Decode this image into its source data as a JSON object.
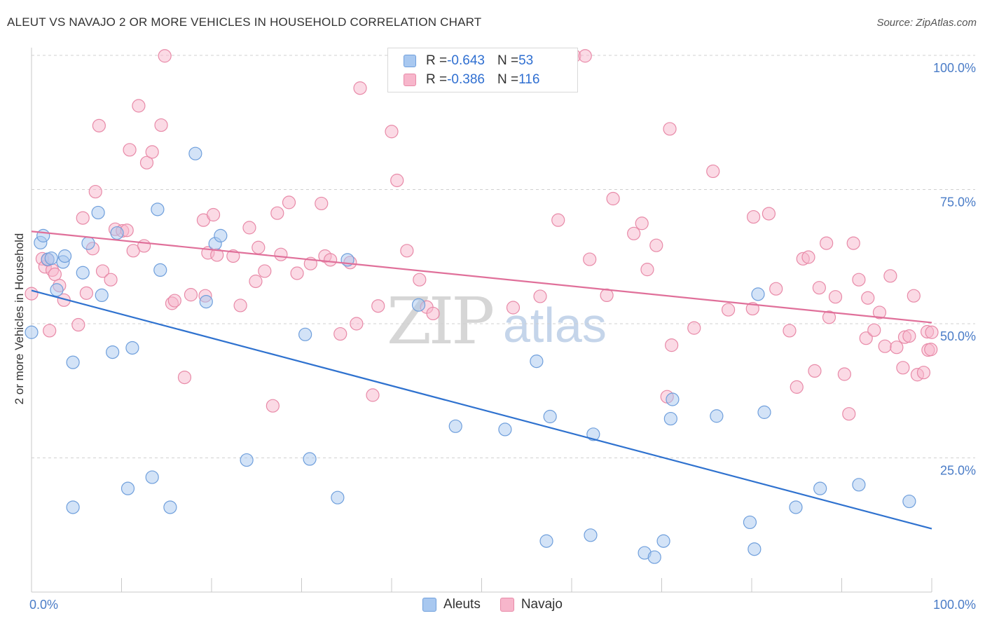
{
  "title": "ALEUT VS NAVAJO 2 OR MORE VEHICLES IN HOUSEHOLD CORRELATION CHART",
  "source": "Source: ZipAtlas.com",
  "watermark": {
    "zip": "ZIP",
    "atlas": "atlas"
  },
  "legend": {
    "rows": [
      {
        "r_label": "R = ",
        "r_value": "-0.643",
        "n_label": "N = ",
        "n_value": "53",
        "color": "#a8c8f0"
      },
      {
        "r_label": "R = ",
        "r_value": "-0.386",
        "n_label": "N = ",
        "n_value": "116",
        "color": "#f7b6cb"
      }
    ]
  },
  "bottom_legend": {
    "aleuts": "Aleuts",
    "navajo": "Navajo"
  },
  "colors": {
    "aleut_fill": "#a8c8f0",
    "aleut_stroke": "#6f9fdc",
    "aleut_line": "#2f72cf",
    "navajo_fill": "#f7b6cb",
    "navajo_stroke": "#e88aa8",
    "navajo_line": "#e0709a",
    "grid": "#d0d0d0",
    "tick_text": "#4a7cc7"
  },
  "chart_data": {
    "type": "scatter",
    "xlabel": "",
    "ylabel": "2 or more Vehicles in Household",
    "xlim": [
      0,
      100
    ],
    "ylim": [
      0,
      100
    ],
    "x_tick_labels": [
      "0.0%",
      "100.0%"
    ],
    "y_ticks": [
      25,
      50,
      75,
      100
    ],
    "y_tick_labels": [
      "25.0%",
      "50.0%",
      "75.0%",
      "100.0%"
    ],
    "grid": "horizontal-dashed",
    "series": [
      {
        "name": "Aleuts",
        "trend": {
          "x": [
            0,
            100
          ],
          "y": [
            56.2,
            11.8
          ]
        },
        "points": [
          [
            0.0,
            48.4
          ],
          [
            1.0,
            65.1
          ],
          [
            1.3,
            66.4
          ],
          [
            1.8,
            62.0
          ],
          [
            2.2,
            62.2
          ],
          [
            2.8,
            56.3
          ],
          [
            3.5,
            61.5
          ],
          [
            3.7,
            62.6
          ],
          [
            4.6,
            42.8
          ],
          [
            4.6,
            15.8
          ],
          [
            5.7,
            59.5
          ],
          [
            6.3,
            65.0
          ],
          [
            7.4,
            70.7
          ],
          [
            7.8,
            55.3
          ],
          [
            9.0,
            44.7
          ],
          [
            9.5,
            66.9
          ],
          [
            10.7,
            19.3
          ],
          [
            11.2,
            45.5
          ],
          [
            13.4,
            21.4
          ],
          [
            14.0,
            71.3
          ],
          [
            14.3,
            60.0
          ],
          [
            15.4,
            15.8
          ],
          [
            18.2,
            81.7
          ],
          [
            19.4,
            54.1
          ],
          [
            20.4,
            64.9
          ],
          [
            21.0,
            66.4
          ],
          [
            23.9,
            24.6
          ],
          [
            30.4,
            48.0
          ],
          [
            30.9,
            24.8
          ],
          [
            34.0,
            17.6
          ],
          [
            35.1,
            61.9
          ],
          [
            43.0,
            53.5
          ],
          [
            47.1,
            30.9
          ],
          [
            52.6,
            30.3
          ],
          [
            56.1,
            43.0
          ],
          [
            57.2,
            9.5
          ],
          [
            57.6,
            32.7
          ],
          [
            62.1,
            10.6
          ],
          [
            62.4,
            29.4
          ],
          [
            68.1,
            7.3
          ],
          [
            69.2,
            6.5
          ],
          [
            70.2,
            9.5
          ],
          [
            71.0,
            32.3
          ],
          [
            71.2,
            35.9
          ],
          [
            76.1,
            32.8
          ],
          [
            79.8,
            13.0
          ],
          [
            80.3,
            8.0
          ],
          [
            80.7,
            55.5
          ],
          [
            81.4,
            33.5
          ],
          [
            84.9,
            15.8
          ],
          [
            87.6,
            19.3
          ],
          [
            91.9,
            20.0
          ],
          [
            97.5,
            16.9
          ]
        ]
      },
      {
        "name": "Navajo",
        "trend": {
          "x": [
            0,
            100
          ],
          "y": [
            67.2,
            50.2
          ]
        },
        "points": [
          [
            0.0,
            55.6
          ],
          [
            1.2,
            62.1
          ],
          [
            1.5,
            60.6
          ],
          [
            1.8,
            61.9
          ],
          [
            2.0,
            48.7
          ],
          [
            2.3,
            60.0
          ],
          [
            2.6,
            59.2
          ],
          [
            3.1,
            57.1
          ],
          [
            3.6,
            54.4
          ],
          [
            5.2,
            49.8
          ],
          [
            5.7,
            69.7
          ],
          [
            6.1,
            55.7
          ],
          [
            6.8,
            64.0
          ],
          [
            7.1,
            74.6
          ],
          [
            7.5,
            86.9
          ],
          [
            7.9,
            59.8
          ],
          [
            8.8,
            58.2
          ],
          [
            9.3,
            67.6
          ],
          [
            10.1,
            67.3
          ],
          [
            10.6,
            67.4
          ],
          [
            10.9,
            82.4
          ],
          [
            11.3,
            63.6
          ],
          [
            11.9,
            90.6
          ],
          [
            12.5,
            64.5
          ],
          [
            12.8,
            80.0
          ],
          [
            13.4,
            82.0
          ],
          [
            14.4,
            87.0
          ],
          [
            14.8,
            99.9
          ],
          [
            15.6,
            53.8
          ],
          [
            15.9,
            54.3
          ],
          [
            17.0,
            40.0
          ],
          [
            17.7,
            55.4
          ],
          [
            19.1,
            69.3
          ],
          [
            19.3,
            55.2
          ],
          [
            19.6,
            63.2
          ],
          [
            20.2,
            70.3
          ],
          [
            20.6,
            62.8
          ],
          [
            22.4,
            62.6
          ],
          [
            23.2,
            53.4
          ],
          [
            24.2,
            67.9
          ],
          [
            24.9,
            57.9
          ],
          [
            25.2,
            64.2
          ],
          [
            25.9,
            59.8
          ],
          [
            26.8,
            34.7
          ],
          [
            27.3,
            70.6
          ],
          [
            27.7,
            62.9
          ],
          [
            28.6,
            72.6
          ],
          [
            29.5,
            59.4
          ],
          [
            31.0,
            61.2
          ],
          [
            32.2,
            72.4
          ],
          [
            32.6,
            62.6
          ],
          [
            33.2,
            61.9
          ],
          [
            34.3,
            48.1
          ],
          [
            35.4,
            61.4
          ],
          [
            36.1,
            50.0
          ],
          [
            36.5,
            93.9
          ],
          [
            37.9,
            36.7
          ],
          [
            38.5,
            53.3
          ],
          [
            40.0,
            85.8
          ],
          [
            40.6,
            76.7
          ],
          [
            41.7,
            63.6
          ],
          [
            43.1,
            58.2
          ],
          [
            43.9,
            53.1
          ],
          [
            44.6,
            51.9
          ],
          [
            53.5,
            53.0
          ],
          [
            56.5,
            55.1
          ],
          [
            58.5,
            69.3
          ],
          [
            60.3,
            99.9
          ],
          [
            61.5,
            99.9
          ],
          [
            62.0,
            62.0
          ],
          [
            63.9,
            55.3
          ],
          [
            64.6,
            73.3
          ],
          [
            66.9,
            66.8
          ],
          [
            67.8,
            68.7
          ],
          [
            68.4,
            60.1
          ],
          [
            69.4,
            64.6
          ],
          [
            70.6,
            36.4
          ],
          [
            70.9,
            86.3
          ],
          [
            71.1,
            46.0
          ],
          [
            73.6,
            49.2
          ],
          [
            75.7,
            78.4
          ],
          [
            77.4,
            52.6
          ],
          [
            80.1,
            52.8
          ],
          [
            80.2,
            69.9
          ],
          [
            81.9,
            70.5
          ],
          [
            82.7,
            56.5
          ],
          [
            84.2,
            48.7
          ],
          [
            85.0,
            38.2
          ],
          [
            85.7,
            62.1
          ],
          [
            86.3,
            62.4
          ],
          [
            87.0,
            41.2
          ],
          [
            87.5,
            56.7
          ],
          [
            88.3,
            65.0
          ],
          [
            88.6,
            51.2
          ],
          [
            89.3,
            55.0
          ],
          [
            90.3,
            40.6
          ],
          [
            90.8,
            33.2
          ],
          [
            91.3,
            65.0
          ],
          [
            91.9,
            58.2
          ],
          [
            92.7,
            47.3
          ],
          [
            92.9,
            54.8
          ],
          [
            93.6,
            48.8
          ],
          [
            94.2,
            52.1
          ],
          [
            94.8,
            45.8
          ],
          [
            95.4,
            58.9
          ],
          [
            96.1,
            45.6
          ],
          [
            96.8,
            41.8
          ],
          [
            97.0,
            47.5
          ],
          [
            97.5,
            47.7
          ],
          [
            98.0,
            55.2
          ],
          [
            98.4,
            40.5
          ],
          [
            99.1,
            40.9
          ],
          [
            99.5,
            48.5
          ],
          [
            99.6,
            45.1
          ],
          [
            99.9,
            45.2
          ],
          [
            100.0,
            48.4
          ]
        ]
      }
    ]
  }
}
